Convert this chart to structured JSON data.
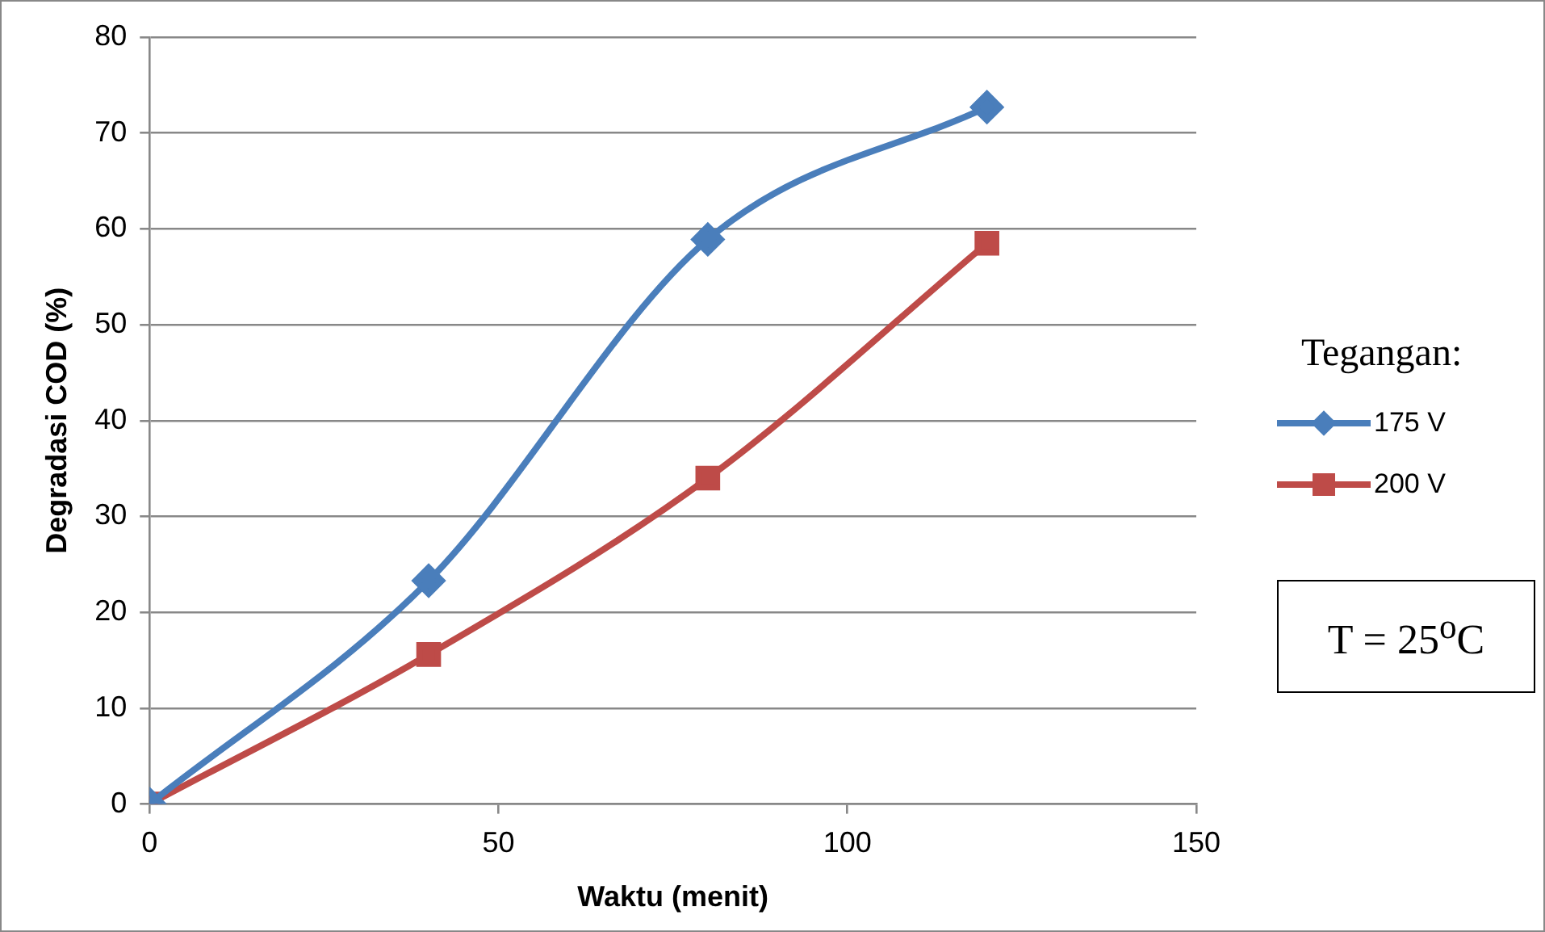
{
  "chart_data": {
    "type": "line",
    "xlabel": "Waktu (menit)",
    "ylabel": "Degradasi COD (%)",
    "legend_title": "Tegangan:",
    "legend": "right",
    "x": [
      0,
      40,
      80,
      120
    ],
    "series": [
      {
        "name": "175 V",
        "color": "#4a7ebb",
        "marker": "diamond",
        "values": [
          0,
          23.3,
          58.9,
          72.7
        ]
      },
      {
        "name": "200 V",
        "color": "#be4b48",
        "marker": "square",
        "values": [
          0,
          15.6,
          34,
          58.5
        ]
      }
    ],
    "xlim": [
      0,
      150
    ],
    "xticks": [
      0,
      50,
      100,
      150
    ],
    "ylim": [
      0,
      80
    ],
    "yticks": [
      0,
      10,
      20,
      30,
      40,
      50,
      60,
      70,
      80
    ],
    "grid": "y",
    "annotations": [
      "T = 25$^{o}$C"
    ]
  }
}
